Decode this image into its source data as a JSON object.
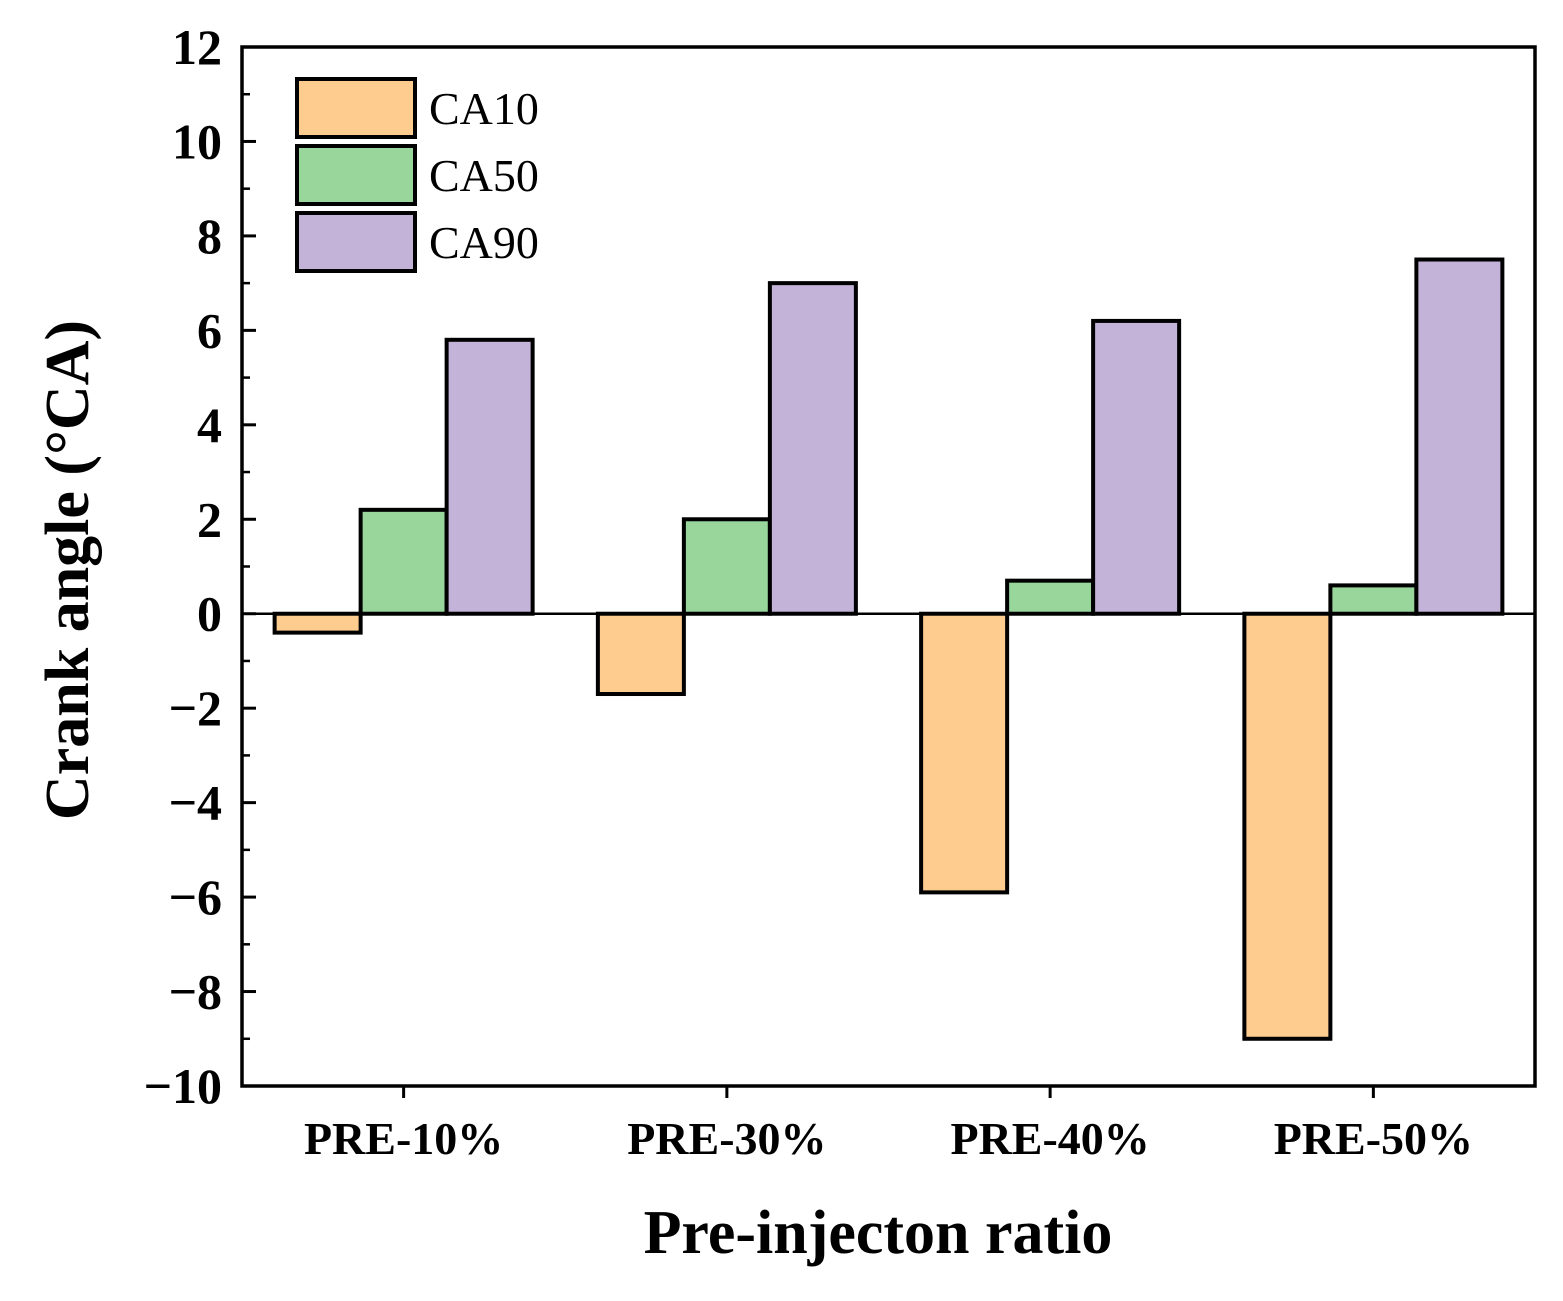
{
  "chart_data": {
    "type": "bar",
    "title": "",
    "xlabel": "Pre-injecton ratio",
    "ylabel": "Crank angle (°CA)",
    "categories": [
      "PRE-10%",
      "PRE-30%",
      "PRE-40%",
      "PRE-50%"
    ],
    "ylim": [
      -10,
      12
    ],
    "yticks": [
      -10,
      -8,
      -6,
      -4,
      -2,
      0,
      2,
      4,
      6,
      8,
      10,
      12
    ],
    "ytick_labels": [
      "−10",
      "−8",
      "−6",
      "−4",
      "−2",
      "0",
      "2",
      "4",
      "6",
      "8",
      "10",
      "12"
    ],
    "grid": false,
    "legend_position": "top-left",
    "series": [
      {
        "name": "CA10",
        "color": "#FFCC8F",
        "values": [
          -0.4,
          -1.7,
          -5.9,
          -9.0
        ]
      },
      {
        "name": "CA50",
        "color": "#99D69C",
        "values": [
          2.2,
          2.0,
          0.7,
          0.6
        ]
      },
      {
        "name": "CA90",
        "color": "#C4B3D8",
        "values": [
          5.8,
          7.0,
          6.2,
          7.5
        ]
      }
    ]
  }
}
